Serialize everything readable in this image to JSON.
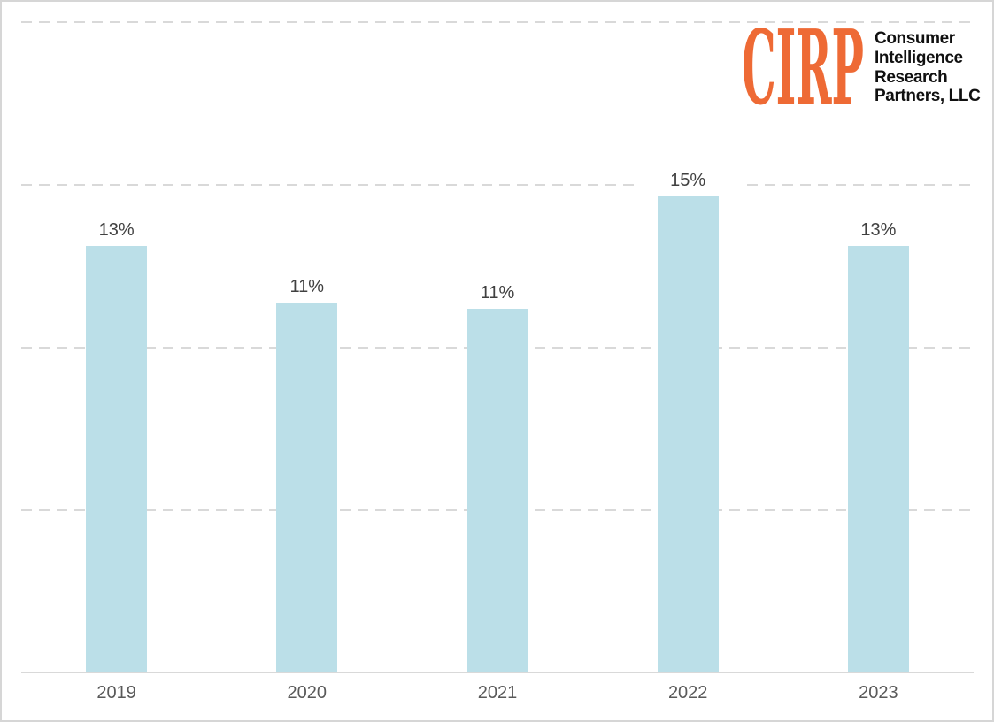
{
  "logo": {
    "acronym": "CIRP",
    "company_lines": [
      "Consumer",
      "Intelligence",
      "Research",
      "Partners, LLC"
    ],
    "accent_color": "#ee6a35",
    "text_color": "#101010"
  },
  "chart_data": {
    "type": "bar",
    "categories": [
      "2019",
      "2020",
      "2021",
      "2022",
      "2023"
    ],
    "values": [
      13,
      11,
      11,
      15,
      13
    ],
    "value_labels": [
      "13%",
      "11%",
      "11%",
      "15%",
      "13%"
    ],
    "values_precise": [
      13.1,
      11.35,
      11.15,
      14.6,
      13.1
    ],
    "title": "",
    "xlabel": "",
    "ylabel": "",
    "ylim": [
      0,
      20
    ],
    "gridline_interval": 5,
    "grid": "horizontal-dashed",
    "legend": "none",
    "bar_color": "#bbdfe8",
    "gridline_color": "#d9d9d9",
    "axis_line_color": "#d9d9d9",
    "label_color": "#404040",
    "tick_label_color": "#595959"
  }
}
